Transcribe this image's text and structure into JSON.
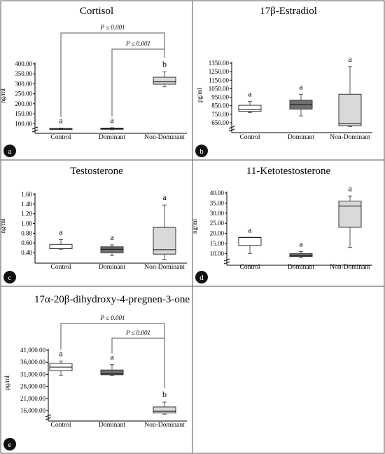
{
  "figure": {
    "panel_fill": "#ffffff",
    "border_color": "#555555",
    "box_colors": [
      "#ffffff",
      "#6f6f6f",
      "#d9d9d9"
    ],
    "badge_color": "#111111"
  },
  "chart_data": [
    {
      "type": "box",
      "panel": "a",
      "title": "Cortisol",
      "ylabel": "ng/ml",
      "categories": [
        "Control",
        "Dominant",
        "Non-Dominant"
      ],
      "yticks": [
        "400.00",
        "350.00",
        "300.00",
        "250.00",
        "200.00",
        "150.00",
        "100.00"
      ],
      "ylim": [
        80,
        400
      ],
      "axis_break": true,
      "boxes": [
        {
          "min": 72,
          "q1": 72,
          "median": 74,
          "q3": 76,
          "max": 78
        },
        {
          "min": 70,
          "q1": 72,
          "median": 75,
          "q3": 78,
          "max": 80
        },
        {
          "min": 285,
          "q1": 298,
          "median": 310,
          "q3": 333,
          "max": 360
        }
      ],
      "letters": [
        "a",
        "a",
        "b"
      ],
      "brackets": [
        {
          "from": 0,
          "to": 2,
          "label": "P ≤ 0.001"
        },
        {
          "from": 1,
          "to": 2,
          "label": "P ≤ 0.001"
        }
      ]
    },
    {
      "type": "box",
      "panel": "b",
      "title": "17β-Estradiol",
      "ylabel": "pg/ml",
      "categories": [
        "Control",
        "Dominant",
        "Non-Dominant"
      ],
      "yticks": [
        "1350.00",
        "1250.00",
        "1150.00",
        "1050.00",
        "950.00",
        "850.00",
        "750.00",
        "650.00"
      ],
      "ylim": [
        600,
        1350
      ],
      "axis_break": true,
      "boxes": [
        {
          "min": 770,
          "q1": 785,
          "median": 805,
          "q3": 855,
          "max": 900
        },
        {
          "min": 730,
          "q1": 810,
          "median": 865,
          "q3": 915,
          "max": 985
        },
        {
          "min": 605,
          "q1": 615,
          "median": 640,
          "q3": 985,
          "max": 1310
        }
      ],
      "letters": [
        "a",
        "a",
        "a"
      ],
      "brackets": []
    },
    {
      "type": "box",
      "panel": "c",
      "title": "Testosterone",
      "ylabel": "ng/ml",
      "categories": [
        "Control",
        "Dominant",
        "Non-Dominant"
      ],
      "yticks": [
        "1.60",
        "1.40",
        "1.20",
        "1.00",
        "0.80",
        "0.60",
        "0.40"
      ],
      "ylim": [
        0.3,
        1.6
      ],
      "axis_break": false,
      "boxes": [
        {
          "min": 0.47,
          "q1": 0.48,
          "median": 0.48,
          "q3": 0.57,
          "max": 0.67
        },
        {
          "min": 0.34,
          "q1": 0.4,
          "median": 0.47,
          "q3": 0.52,
          "max": 0.56
        },
        {
          "min": 0.26,
          "q1": 0.37,
          "median": 0.46,
          "q3": 0.92,
          "max": 1.38
        }
      ],
      "letters": [
        "a",
        "a",
        "a"
      ],
      "brackets": []
    },
    {
      "type": "box",
      "panel": "d",
      "title": "11-Ketotestosterone",
      "ylabel": "ng/ml",
      "categories": [
        "Control",
        "Dominant",
        "Non-Dominant"
      ],
      "yticks": [
        "40.00",
        "35.00",
        "30.00",
        "25.00",
        "20.00",
        "15.00",
        "10.00"
      ],
      "ylim": [
        7,
        40
      ],
      "axis_break": true,
      "boxes": [
        {
          "min": 10,
          "q1": 14,
          "median": 18,
          "q3": 18,
          "max": 18
        },
        {
          "min": 8,
          "q1": 8.5,
          "median": 9,
          "q3": 10,
          "max": 11
        },
        {
          "min": 13,
          "q1": 23,
          "median": 33.5,
          "q3": 36,
          "max": 38.5
        }
      ],
      "letters": [
        "a",
        "a",
        "a"
      ],
      "brackets": []
    },
    {
      "type": "box",
      "panel": "e",
      "title": "17α-20β-dihydroxy-4-pregnen-3-one",
      "ylabel": "pg/ml",
      "categories": [
        "Control",
        "Dominant",
        "Non-Dominant"
      ],
      "yticks": [
        "41,000.00",
        "36,000.00",
        "31,000.00",
        "26,000.00",
        "21,000.00",
        "16,000.00"
      ],
      "ylim": [
        14000,
        41000
      ],
      "axis_break": true,
      "boxes": [
        {
          "min": 30500,
          "q1": 32500,
          "median": 34000,
          "q3": 35500,
          "max": 36500
        },
        {
          "min": 30500,
          "q1": 30800,
          "median": 31200,
          "q3": 32800,
          "max": 35000
        },
        {
          "min": 14500,
          "q1": 15000,
          "median": 15700,
          "q3": 17500,
          "max": 19500
        }
      ],
      "letters": [
        "a",
        "a",
        "b"
      ],
      "brackets": [
        {
          "from": 0,
          "to": 2,
          "label": "P ≤ 0.001"
        },
        {
          "from": 1,
          "to": 2,
          "label": "P ≤ 0.001"
        }
      ]
    }
  ]
}
